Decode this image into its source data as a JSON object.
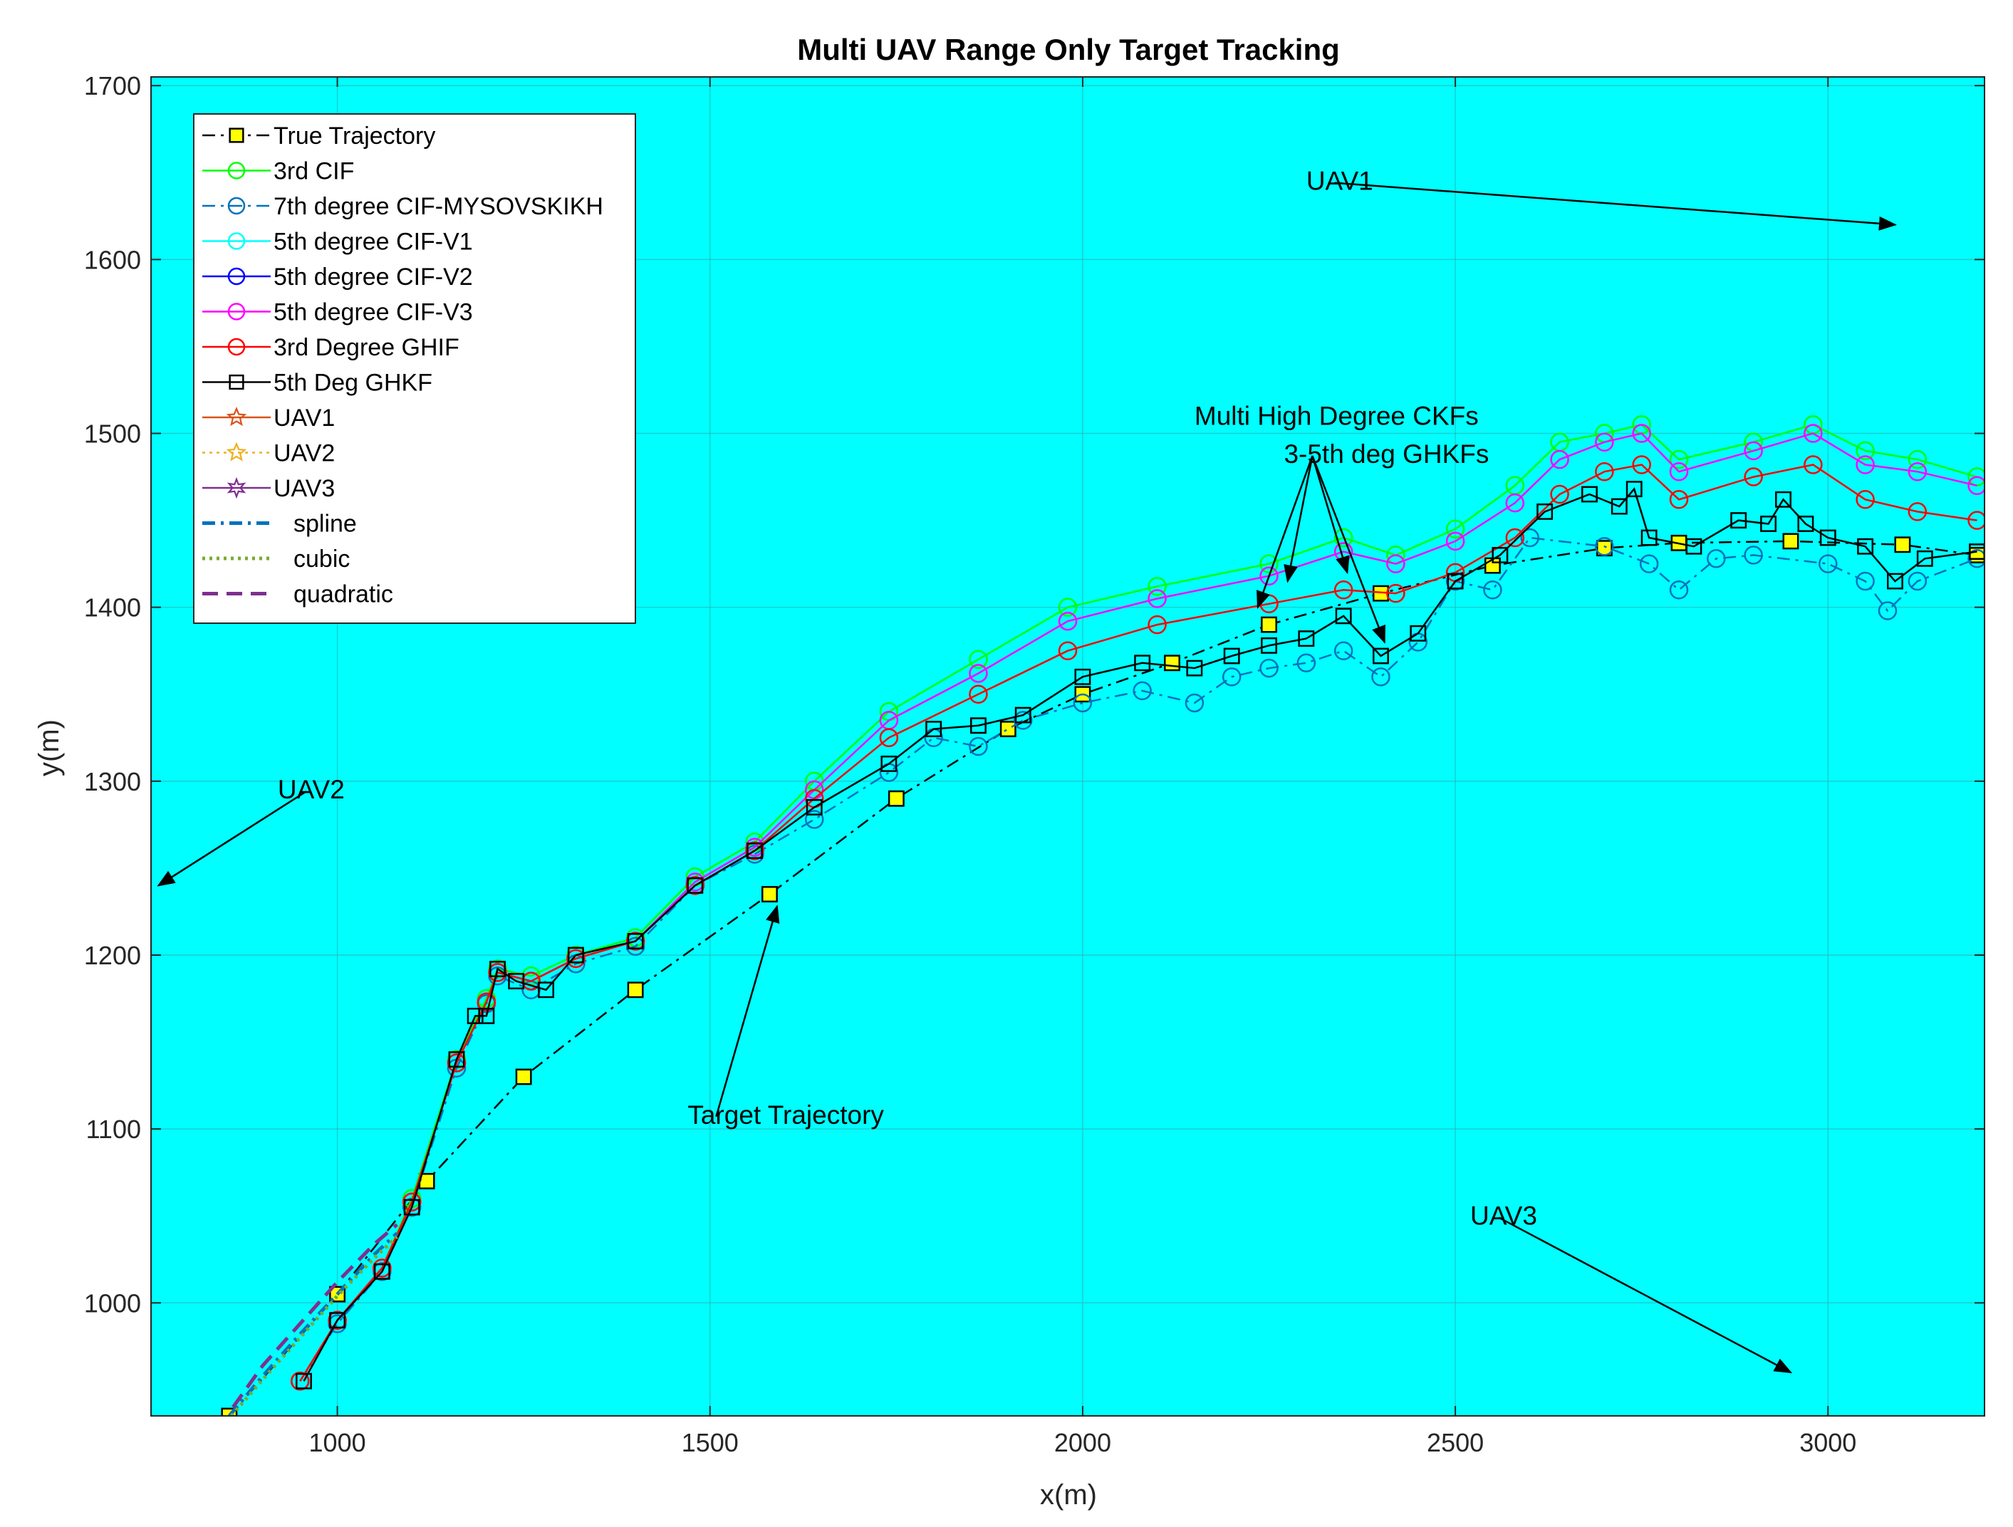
{
  "chart_data": {
    "type": "line",
    "title": "Multi UAV Range Only Target Tracking",
    "xlabel": "x(m)",
    "ylabel": "y(m)",
    "xlim": [
      750,
      3210
    ],
    "ylim": [
      935,
      1705
    ],
    "xticks": [
      1000,
      1500,
      2000,
      2500,
      3000
    ],
    "yticks": [
      1000,
      1100,
      1200,
      1300,
      1400,
      1500,
      1600,
      1700
    ],
    "grid": true,
    "background": "#00FFFF",
    "legend_position": "top-left",
    "series": [
      {
        "name": "True Trajectory",
        "color": "#000000",
        "marker": "square",
        "marker_fill": "#FFFF00",
        "line": "dashdot",
        "x": [
          855,
          1000,
          1120,
          1250,
          1400,
          1580,
          1750,
          1900,
          2000,
          2120,
          2250,
          2400,
          2550,
          2700,
          2800,
          2950,
          3100,
          3200
        ],
        "y": [
          935,
          1005,
          1070,
          1130,
          1180,
          1235,
          1290,
          1330,
          1350,
          1368,
          1390,
          1408,
          1424,
          1434,
          1437,
          1438,
          1436,
          1430
        ]
      },
      {
        "name": "3rd CIF",
        "color": "#00FF00",
        "marker": "circle",
        "line": "solid",
        "x": [
          950,
          1000,
          1060,
          1100,
          1160,
          1200,
          1215,
          1260,
          1320,
          1400,
          1480,
          1560,
          1640,
          1740,
          1860,
          1980,
          2100,
          2250,
          2350,
          2420,
          2500,
          2580,
          2640,
          2700,
          2750,
          2800,
          2900,
          2980,
          3050,
          3120,
          3200
        ],
        "y": [
          955,
          990,
          1020,
          1060,
          1140,
          1175,
          1192,
          1188,
          1200,
          1210,
          1245,
          1265,
          1300,
          1340,
          1370,
          1400,
          1412,
          1425,
          1440,
          1430,
          1445,
          1470,
          1495,
          1500,
          1505,
          1485,
          1495,
          1505,
          1490,
          1485,
          1475
        ]
      },
      {
        "name": "7th degree CIF-MYSOVSKIKH",
        "color": "#0072BD",
        "marker": "circle",
        "line": "dashdot",
        "x": [
          950,
          1000,
          1060,
          1100,
          1160,
          1200,
          1215,
          1260,
          1320,
          1400,
          1480,
          1560,
          1640,
          1740,
          1800,
          1860,
          1920,
          2000,
          2080,
          2150,
          2200,
          2250,
          2300,
          2350,
          2400,
          2450,
          2500,
          2550,
          2600,
          2700,
          2760,
          2800,
          2850,
          2900,
          3000,
          3050,
          3080,
          3120,
          3200
        ],
        "y": [
          955,
          988,
          1018,
          1055,
          1135,
          1172,
          1188,
          1180,
          1195,
          1205,
          1240,
          1258,
          1278,
          1305,
          1325,
          1320,
          1335,
          1345,
          1352,
          1345,
          1360,
          1365,
          1368,
          1375,
          1360,
          1380,
          1415,
          1410,
          1440,
          1435,
          1425,
          1410,
          1428,
          1430,
          1425,
          1415,
          1398,
          1415,
          1428
        ]
      },
      {
        "name": "5th degree CIF-V1",
        "color": "#00FFFF",
        "marker": "circle",
        "line": "solid",
        "x": [],
        "y": []
      },
      {
        "name": "5th degree CIF-V2",
        "color": "#0000FF",
        "marker": "circle",
        "line": "solid",
        "x": [],
        "y": []
      },
      {
        "name": "5th degree CIF-V3",
        "color": "#FF00FF",
        "marker": "circle",
        "line": "solid",
        "x": [
          950,
          1000,
          1060,
          1100,
          1160,
          1200,
          1215,
          1260,
          1320,
          1400,
          1480,
          1560,
          1640,
          1740,
          1860,
          1980,
          2100,
          2250,
          2350,
          2420,
          2500,
          2580,
          2640,
          2700,
          2750,
          2800,
          2900,
          2980,
          3050,
          3120,
          3200
        ],
        "y": [
          955,
          990,
          1020,
          1058,
          1138,
          1173,
          1190,
          1185,
          1198,
          1208,
          1242,
          1262,
          1295,
          1335,
          1362,
          1392,
          1405,
          1418,
          1432,
          1425,
          1438,
          1460,
          1485,
          1495,
          1500,
          1478,
          1490,
          1500,
          1482,
          1478,
          1470
        ]
      },
      {
        "name": "3rd Degree GHIF",
        "color": "#FF0000",
        "marker": "circle",
        "line": "solid",
        "x": [
          950,
          1000,
          1060,
          1100,
          1160,
          1200,
          1215,
          1260,
          1320,
          1400,
          1480,
          1560,
          1640,
          1740,
          1860,
          1980,
          2100,
          2250,
          2350,
          2420,
          2500,
          2580,
          2640,
          2700,
          2750,
          2800,
          2900,
          2980,
          3050,
          3120,
          3200
        ],
        "y": [
          955,
          990,
          1020,
          1058,
          1138,
          1173,
          1190,
          1185,
          1198,
          1208,
          1240,
          1260,
          1290,
          1325,
          1350,
          1375,
          1390,
          1402,
          1410,
          1408,
          1420,
          1440,
          1465,
          1478,
          1482,
          1462,
          1475,
          1482,
          1462,
          1455,
          1450
        ]
      },
      {
        "name": "5th Deg GHKF",
        "color": "#000000",
        "marker": "square",
        "line": "solid",
        "x": [
          955,
          1000,
          1060,
          1100,
          1160,
          1185,
          1200,
          1215,
          1240,
          1280,
          1320,
          1400,
          1480,
          1560,
          1640,
          1740,
          1800,
          1860,
          1920,
          2000,
          2080,
          2150,
          2200,
          2250,
          2300,
          2350,
          2400,
          2450,
          2500,
          2560,
          2620,
          2680,
          2720,
          2740,
          2760,
          2820,
          2880,
          2920,
          2940,
          2970,
          3000,
          3050,
          3090,
          3130,
          3200
        ],
        "y": [
          955,
          990,
          1018,
          1055,
          1140,
          1165,
          1165,
          1192,
          1185,
          1180,
          1200,
          1208,
          1240,
          1260,
          1285,
          1310,
          1330,
          1332,
          1338,
          1360,
          1368,
          1365,
          1372,
          1378,
          1382,
          1395,
          1372,
          1385,
          1415,
          1430,
          1455,
          1465,
          1458,
          1468,
          1440,
          1435,
          1450,
          1448,
          1462,
          1448,
          1440,
          1435,
          1415,
          1428,
          1432
        ]
      },
      {
        "name": "UAV1",
        "color": "#D95319",
        "marker": "star",
        "line": "solid",
        "x": [],
        "y": []
      },
      {
        "name": "UAV2",
        "color": "#EDB120",
        "marker": "star",
        "line": "dotted",
        "x": [],
        "y": []
      },
      {
        "name": "UAV3",
        "color": "#7E2F8E",
        "marker": "hexagram",
        "line": "solid",
        "x": [],
        "y": []
      },
      {
        "name": "spline",
        "color": "#0072BD",
        "marker": "none",
        "line": "dashdot",
        "x": [
          855,
          900,
          950,
          1000,
          1050,
          1080
        ],
        "y": [
          935,
          958,
          982,
          1005,
          1028,
          1040
        ]
      },
      {
        "name": "cubic",
        "color": "#77AC30",
        "marker": "none",
        "line": "dotted",
        "x": [
          858,
          900,
          950,
          1000,
          1050,
          1080
        ],
        "y": [
          935,
          956,
          980,
          1004,
          1026,
          1038
        ]
      },
      {
        "name": "quadratic",
        "color": "#7E2F8E",
        "marker": "none",
        "line": "dashed",
        "x": [
          860,
          900,
          950,
          1000,
          1050,
          1080
        ],
        "y": [
          940,
          964,
          988,
          1012,
          1034,
          1045
        ]
      }
    ],
    "annotations": [
      {
        "text": "UAV1",
        "text_at": [
          2300,
          1640
        ],
        "arrow_to": [
          [
            3090,
            1620
          ]
        ]
      },
      {
        "text": "UAV2",
        "text_at": [
          920,
          1290
        ],
        "arrow_to": [
          [
            760,
            1240
          ]
        ]
      },
      {
        "text": "UAV3",
        "text_at": [
          2520,
          1045
        ],
        "arrow_to": [
          [
            2950,
            960
          ]
        ]
      },
      {
        "text": "Target Trajectory",
        "text_at": [
          1470,
          1103
        ],
        "arrow_to": [
          [
            1590,
            1228
          ]
        ]
      },
      {
        "text": "Multi High Degree CKFs",
        "text_at": [
          2150,
          1505
        ],
        "arrow_to": []
      },
      {
        "text": "3-5th deg GHKFs",
        "text_at": [
          2270,
          1483
        ],
        "arrow_to": [
          [
            2235,
            1400
          ],
          [
            2275,
            1415
          ],
          [
            2355,
            1420
          ],
          [
            2405,
            1380
          ]
        ]
      }
    ]
  }
}
